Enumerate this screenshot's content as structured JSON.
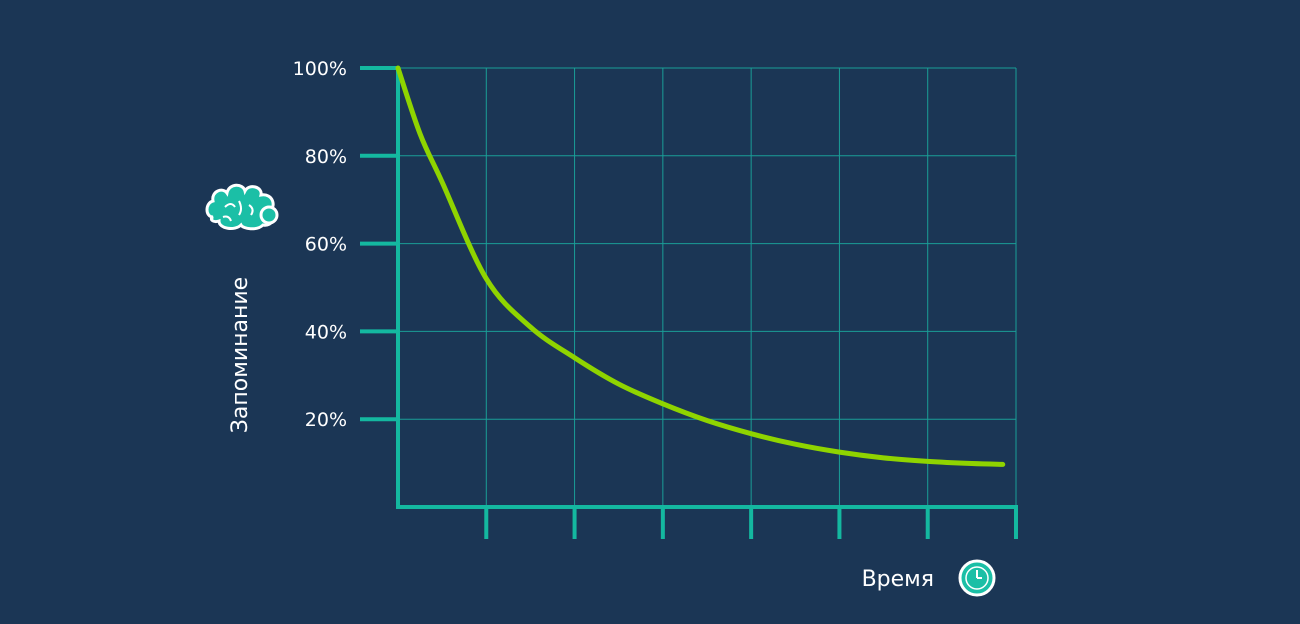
{
  "chart_data": {
    "type": "line",
    "ylabel": "Запоминание",
    "xlabel": "Время",
    "ylim": [
      0,
      100
    ],
    "y_ticks": [
      {
        "value": 100,
        "label": "100%"
      },
      {
        "value": 80,
        "label": "80%"
      },
      {
        "value": 60,
        "label": "60%"
      },
      {
        "value": 40,
        "label": "40%"
      },
      {
        "value": 20,
        "label": "20%"
      }
    ],
    "xlim": [
      0,
      7
    ],
    "x_ticks": [
      1,
      2,
      3,
      4,
      5,
      6,
      7
    ],
    "grid": true,
    "series": [
      {
        "x": [
          0,
          0.25,
          0.5,
          1,
          1.5,
          2,
          2.5,
          3,
          3.5,
          4,
          4.5,
          5,
          5.5,
          6,
          6.5,
          6.85
        ],
        "values": [
          100,
          85,
          74,
          52,
          41,
          34,
          28,
          23.5,
          19.7,
          16.7,
          14.3,
          12.5,
          11.2,
          10.4,
          9.9,
          9.7
        ]
      }
    ],
    "colors": {
      "background": "#1b3655",
      "axis": "#14b8a0",
      "grid": "#1a9e97",
      "line": "#8fd400",
      "text": "#ffffff"
    },
    "icons": {
      "y_axis": "brain-icon",
      "x_axis": "clock-icon"
    }
  }
}
